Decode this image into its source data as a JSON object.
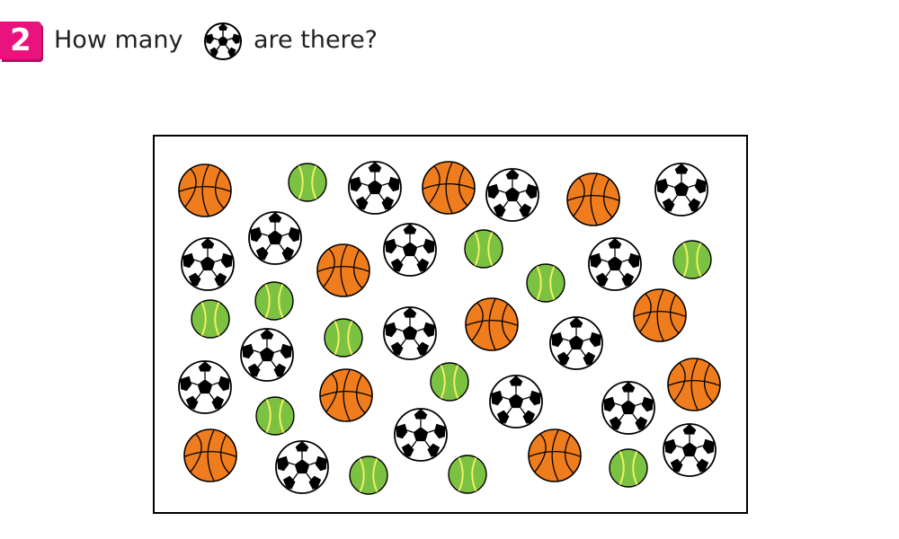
{
  "question": {
    "number": "2",
    "text_before": "How many",
    "text_after": "are there?",
    "icon": "soccer-ball-icon"
  },
  "colors": {
    "badge": "#e8137d",
    "basketball": "#f07d1d",
    "tennis_ball": "#7cc242",
    "tennis_seam": "#f2ee63",
    "soccer_patch": "#000000"
  }
}
